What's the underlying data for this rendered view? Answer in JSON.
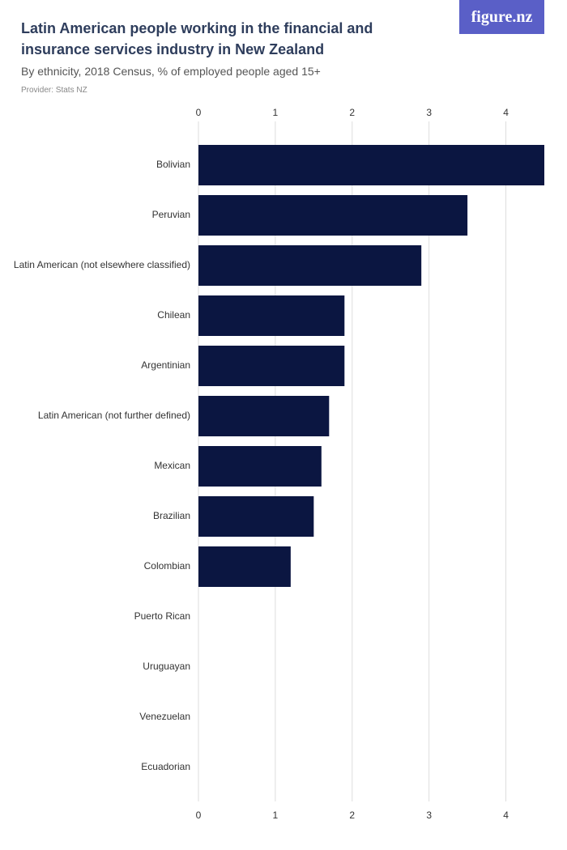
{
  "logo": "figure.nz",
  "chart_data": {
    "type": "bar",
    "orientation": "horizontal",
    "title": "Latin American people working in the financial and insurance services industry in New Zealand",
    "subtitle": "By ethnicity, 2018 Census, % of employed people aged 15+",
    "provider": "Provider: Stats NZ",
    "categories": [
      "Bolivian",
      "Peruvian",
      "Latin American (not elsewhere classified)",
      "Chilean",
      "Argentinian",
      "Latin American (not further defined)",
      "Mexican",
      "Brazilian",
      "Colombian",
      "Puerto Rican",
      "Uruguayan",
      "Venezuelan",
      "Ecuadorian"
    ],
    "values": [
      4.5,
      3.5,
      2.9,
      1.9,
      1.9,
      1.7,
      1.6,
      1.5,
      1.2,
      0,
      0,
      0,
      0
    ],
    "color": "#0b1641",
    "xlim": [
      0,
      4.5
    ],
    "xticks": [
      0,
      1,
      2,
      3,
      4
    ],
    "grid": true
  }
}
